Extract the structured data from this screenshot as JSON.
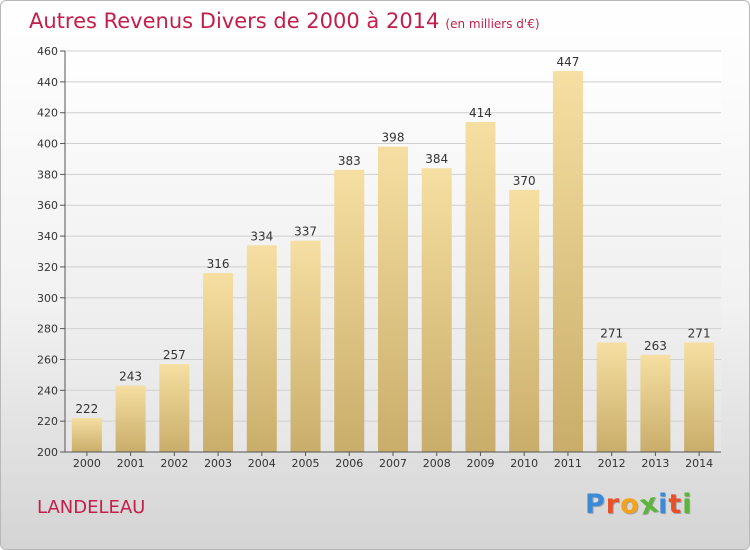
{
  "header": {
    "title": "Autres Revenus Divers de 2000 à 2014",
    "subtitle": "(en milliers d'€)"
  },
  "footer": {
    "commune": "LANDELEAU",
    "logo": {
      "text": "Proxiti",
      "letter_colors": [
        "#3b8ad8",
        "#e8502a",
        "#f2a21c",
        "#5bb53a",
        "#3b8ad8",
        "#e8502a",
        "#5bb53a"
      ]
    }
  },
  "colors": {
    "title": "#c41e4a",
    "bar_light": "#f6dfa2",
    "bar_dark": "#c9ad6a",
    "grid": "#d0d0d0"
  },
  "chart_data": {
    "type": "bar",
    "title": "Autres Revenus Divers de 2000 à 2014",
    "subtitle": "(en milliers d'€)",
    "xlabel": "",
    "ylabel": "",
    "categories": [
      "2000",
      "2001",
      "2002",
      "2003",
      "2004",
      "2005",
      "2006",
      "2007",
      "2008",
      "2009",
      "2010",
      "2011",
      "2012",
      "2013",
      "2014"
    ],
    "values": [
      222,
      243,
      257,
      316,
      334,
      337,
      383,
      398,
      384,
      414,
      370,
      447,
      271,
      263,
      271
    ],
    "ylim": [
      200,
      460
    ],
    "yticks": [
      200,
      220,
      240,
      260,
      280,
      300,
      320,
      340,
      360,
      380,
      400,
      420,
      440,
      460
    ],
    "grid": true,
    "legend": "none"
  }
}
